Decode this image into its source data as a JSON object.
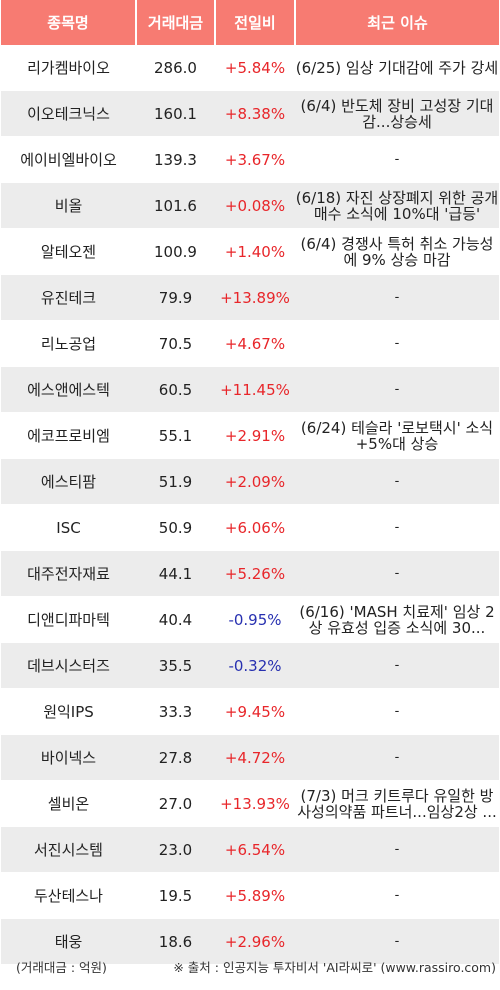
{
  "header": {
    "name": "종목명",
    "volume": "거래대금",
    "change": "전일비",
    "issue": "최근 이슈"
  },
  "rows": [
    {
      "name": "리가켐바이오",
      "volume": "286.0",
      "change": "+5.84%",
      "issue": "(6/25) 임상 기대감에 주가 강세"
    },
    {
      "name": "이오테크닉스",
      "volume": "160.1",
      "change": "+8.38%",
      "issue": "(6/4) 반도체 장비 고성장 기대감...상승세"
    },
    {
      "name": "에이비엘바이오",
      "volume": "139.3",
      "change": "+3.67%",
      "issue": "-"
    },
    {
      "name": "비올",
      "volume": "101.6",
      "change": "+0.08%",
      "issue": "(6/18) 자진 상장폐지 위한 공개매수 소식에 10%대 '급등'"
    },
    {
      "name": "알테오젠",
      "volume": "100.9",
      "change": "+1.40%",
      "issue": "(6/4) 경쟁사 특허 취소 가능성에 9% 상승 마감"
    },
    {
      "name": "유진테크",
      "volume": "79.9",
      "change": "+13.89%",
      "issue": "-"
    },
    {
      "name": "리노공업",
      "volume": "70.5",
      "change": "+4.67%",
      "issue": "-"
    },
    {
      "name": "에스앤에스텍",
      "volume": "60.5",
      "change": "+11.45%",
      "issue": "-"
    },
    {
      "name": "에코프로비엠",
      "volume": "55.1",
      "change": "+2.91%",
      "issue": "(6/24) 테슬라 '로보택시' 소식 +5%대 상승"
    },
    {
      "name": "에스티팜",
      "volume": "51.9",
      "change": "+2.09%",
      "issue": "-"
    },
    {
      "name": "ISC",
      "volume": "50.9",
      "change": "+6.06%",
      "issue": "-"
    },
    {
      "name": "대주전자재료",
      "volume": "44.1",
      "change": "+5.26%",
      "issue": "-"
    },
    {
      "name": "디앤디파마텍",
      "volume": "40.4",
      "change": "-0.95%",
      "issue": "(6/16) 'MASH 치료제' 임상 2상 유효성 입증 소식에 30..."
    },
    {
      "name": "데브시스터즈",
      "volume": "35.5",
      "change": "-0.32%",
      "issue": "-"
    },
    {
      "name": "원익IPS",
      "volume": "33.3",
      "change": "+9.45%",
      "issue": "-"
    },
    {
      "name": "바이넥스",
      "volume": "27.8",
      "change": "+4.72%",
      "issue": "-"
    },
    {
      "name": "셀비온",
      "volume": "27.0",
      "change": "+13.93%",
      "issue": "(7/3) 머크 키트루다 유일한 방사성의약품 파트너...임상2상 ..."
    },
    {
      "name": "서진시스템",
      "volume": "23.0",
      "change": "+6.54%",
      "issue": "-"
    },
    {
      "name": "두산테스나",
      "volume": "19.5",
      "change": "+5.89%",
      "issue": "-"
    },
    {
      "name": "태웅",
      "volume": "18.6",
      "change": "+2.96%",
      "issue": "-"
    }
  ],
  "colors": {
    "header_bg": "#f77b72",
    "up": "#e8262a",
    "down": "#2730b0",
    "stripe": "#ececec"
  },
  "footer": {
    "unit_note": "(거래대금 : 억원)",
    "source_note": "※ 출처 : 인공지능 투자비서 'AI라씨로' (www.rassiro.com)"
  }
}
